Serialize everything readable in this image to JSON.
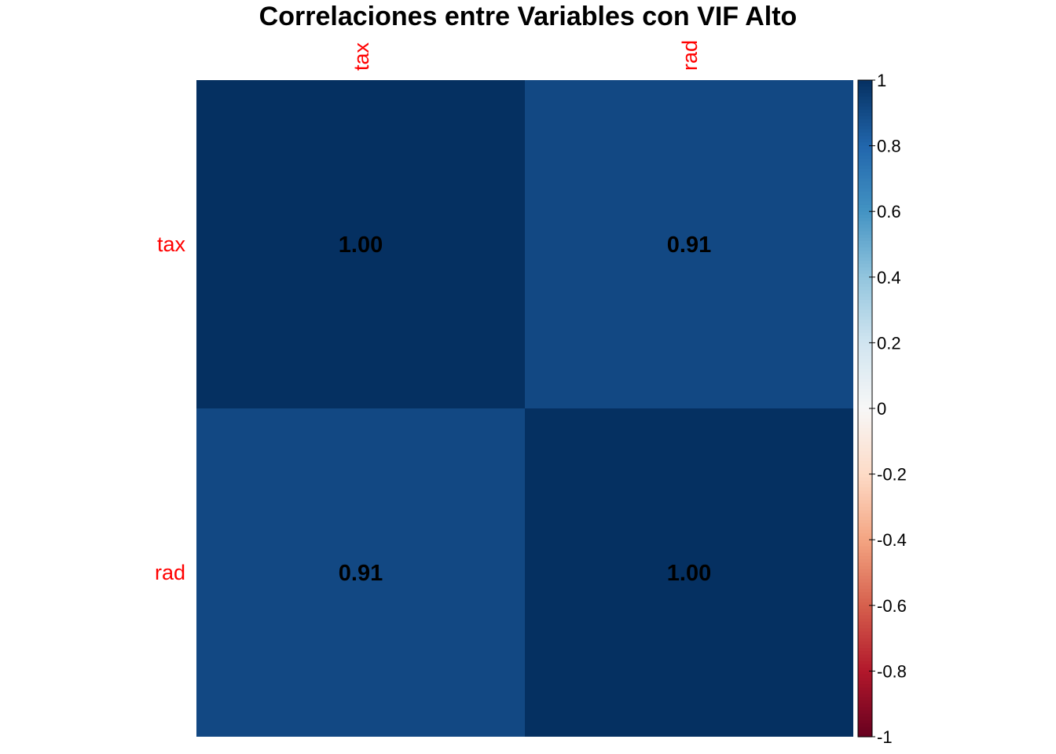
{
  "chart_data": {
    "type": "heatmap",
    "title": "Correlaciones entre Variables con VIF Alto",
    "variables": [
      "tax",
      "rad"
    ],
    "matrix": [
      [
        1.0,
        0.91
      ],
      [
        0.91,
        1.0
      ]
    ],
    "cell_labels": [
      [
        "1.00",
        "0.91"
      ],
      [
        "0.91",
        "1.00"
      ]
    ],
    "value_range": [
      -1,
      1
    ],
    "colorbar": {
      "placement": "right",
      "ticks": [
        1,
        0.8,
        0.6,
        0.4,
        0.2,
        0,
        -0.2,
        -0.4,
        -0.6,
        -0.8,
        -1
      ],
      "tick_labels": [
        "1",
        "0.8",
        "0.6",
        "0.4",
        "0.2",
        "0",
        "-0.2",
        "-0.4",
        "-0.6",
        "-0.8",
        "-1"
      ]
    },
    "colors": {
      "variable_label": "#ff0000",
      "cell_text": "#000000",
      "scale": [
        "#67001f",
        "#b2182b",
        "#d6604d",
        "#f4a582",
        "#fddbc7",
        "#f7f7f7",
        "#d1e5f0",
        "#92c5de",
        "#4393c3",
        "#2166ac",
        "#053061"
      ]
    },
    "grid": false,
    "legend": "colorbar right"
  }
}
